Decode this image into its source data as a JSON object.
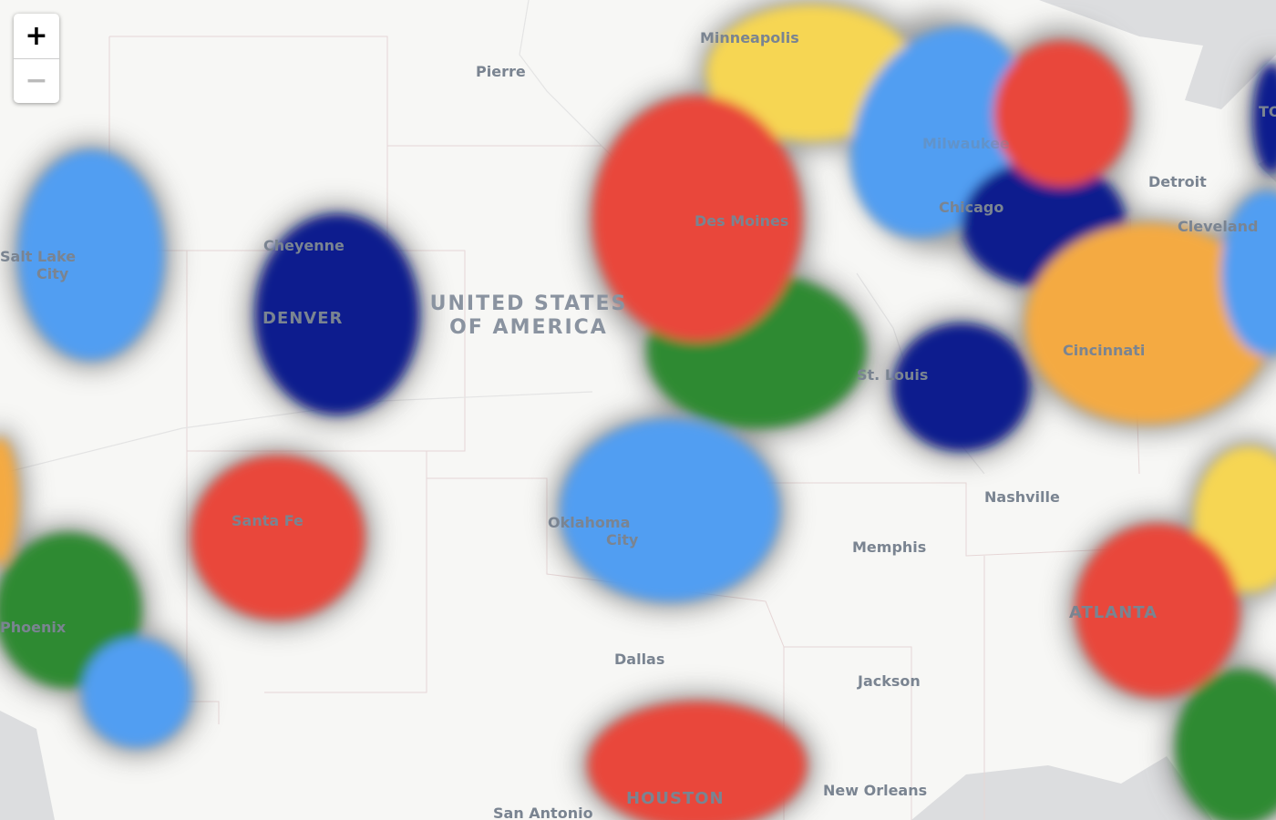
{
  "zoom_controls": {
    "zoom_in": "+",
    "zoom_out": "−"
  },
  "country_label": [
    "UNITED STATES",
    "OF AMERICA"
  ],
  "cities": [
    [
      "Minneapolis"
    ],
    [
      "Pierre"
    ],
    [
      "Detroit"
    ],
    [
      "Cleveland"
    ],
    [
      "Salt Lake",
      "City"
    ],
    [
      "Cheyenne"
    ],
    [
      "Des Moines"
    ],
    [
      "Chicago"
    ],
    [
      "DENVER"
    ],
    [
      "St. Louis"
    ],
    [
      "Cincinnati"
    ],
    [
      "Nashville"
    ],
    [
      "Santa Fe"
    ],
    [
      "Oklahoma",
      "City"
    ],
    [
      "Memphis"
    ],
    [
      "Phoenix"
    ],
    [
      "ATLANTA"
    ],
    [
      "Dallas"
    ],
    [
      "Jackson"
    ],
    [
      "HOUSTON"
    ],
    [
      "New Orleans"
    ],
    [
      "San Antonio"
    ],
    [
      "TO"
    ],
    [
      "Milwaukee"
    ]
  ]
}
